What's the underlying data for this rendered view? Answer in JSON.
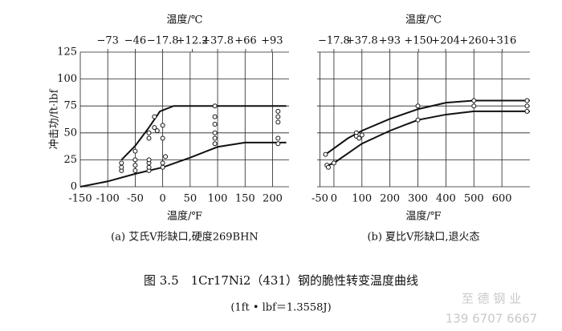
{
  "chart_data": [
    {
      "type": "line",
      "x2_label": "温度/℃",
      "xlabel": "温度/℉",
      "ylabel": "冲击功/ft·lbf",
      "caption": "(a) 艾氏V形缺口,硬度269BHN",
      "xlim": [
        -150,
        230
      ],
      "ylim": [
        0,
        125
      ],
      "grid": true,
      "xticks": [
        -150,
        -100,
        -50,
        0,
        50,
        100,
        150,
        200
      ],
      "yticks": [
        0,
        25,
        50,
        75,
        100,
        125
      ],
      "x2ticks": [
        {
          "value": -100,
          "label": "−73"
        },
        {
          "value": -50,
          "label": "−46"
        },
        {
          "value": 0,
          "label": "−17.8"
        },
        {
          "value": 54,
          "label": "+12.2"
        },
        {
          "value": 100,
          "label": "+37.8"
        },
        {
          "value": 151,
          "label": "+66"
        },
        {
          "value": 199,
          "label": "+93"
        }
      ],
      "series": [
        {
          "type": "line",
          "x": [
            -75,
            -50,
            -25,
            -5,
            20,
            100,
            225
          ],
          "values": [
            25,
            38,
            55,
            70,
            75,
            75,
            75
          ]
        },
        {
          "type": "line",
          "x": [
            -150,
            -100,
            -50,
            0,
            50,
            100,
            150,
            225
          ],
          "values": [
            0,
            5,
            12,
            18,
            27,
            37,
            41,
            41
          ]
        },
        {
          "type": "scatter",
          "x": [
            -75,
            -75,
            -75,
            -50,
            -50,
            -50,
            -50,
            -25,
            -25,
            -25,
            -25,
            -25,
            -25,
            -15,
            -15,
            -10,
            0,
            0,
            0,
            0,
            5,
            95,
            95,
            95,
            95,
            95,
            95,
            210,
            210,
            210,
            210,
            210
          ],
          "values": [
            15,
            18,
            22,
            15,
            20,
            25,
            33,
            15,
            18,
            22,
            25,
            45,
            50,
            65,
            55,
            52,
            18,
            22,
            57,
            45,
            28,
            75,
            65,
            58,
            50,
            45,
            40,
            70,
            65,
            60,
            45,
            40
          ]
        }
      ]
    },
    {
      "type": "line",
      "x2_label": "温度/℃",
      "xlabel": "温度/℉",
      "caption": "(b) 夏比V形缺口,退火态",
      "xlim": [
        -60,
        700
      ],
      "ylim": [
        0,
        125
      ],
      "grid": true,
      "xticks": [
        -50,
        0,
        100,
        200,
        300,
        400,
        500,
        600
      ],
      "yticks": [
        0,
        25,
        50,
        75,
        100,
        125
      ],
      "x2ticks": [
        {
          "value": 0,
          "label": "−17.8"
        },
        {
          "value": 100,
          "label": "+37.8"
        },
        {
          "value": 199,
          "label": "+93"
        },
        {
          "value": 302,
          "label": "+150"
        },
        {
          "value": 399,
          "label": "+204"
        },
        {
          "value": 500,
          "label": "+260"
        },
        {
          "value": 601,
          "label": "+316"
        }
      ],
      "series": [
        {
          "type": "line",
          "x": [
            -30,
            50,
            100,
            200,
            300,
            400,
            500,
            700
          ],
          "values": [
            30,
            45,
            52,
            63,
            72,
            78,
            80,
            80
          ]
        },
        {
          "type": "line",
          "x": [
            -20,
            0,
            100,
            200,
            300,
            400,
            500,
            700
          ],
          "values": [
            20,
            22,
            40,
            52,
            62,
            67,
            70,
            70
          ]
        },
        {
          "type": "scatter",
          "x": [
            -30,
            -25,
            -20,
            0,
            80,
            80,
            90,
            100,
            300,
            300,
            500,
            500,
            690,
            690,
            690
          ],
          "values": [
            30,
            20,
            18,
            22,
            50,
            47,
            45,
            48,
            75,
            62,
            80,
            75,
            80,
            75,
            70
          ]
        }
      ]
    }
  ],
  "figure": {
    "caption": "图 3.5　1Cr17Ni2（431）钢的脆性转变温度曲线",
    "note": "(1ft • lbf＝1.3558J)"
  },
  "watermark": {
    "name": "至 德 钢 业",
    "phone": "139 6707 6667"
  }
}
